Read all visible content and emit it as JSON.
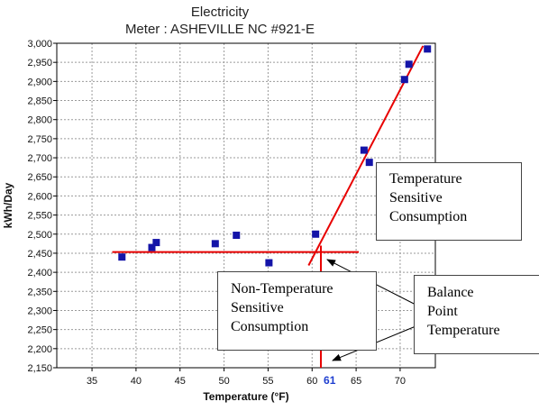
{
  "chart_data": {
    "type": "scatter",
    "title": "Electricity",
    "subtitle": "Meter : ASHEVILLE NC #921-E",
    "xlabel": "Temperature (°F)",
    "ylabel": "kWh/Day",
    "xlim": [
      31,
      74
    ],
    "ylim": [
      2150,
      3000
    ],
    "xticks": [
      35,
      40,
      45,
      50,
      55,
      60,
      65,
      70
    ],
    "xtick_labels": [
      "35",
      "40",
      "45",
      "50",
      "55",
      "60",
      "65",
      "70"
    ],
    "yticks": [
      2150,
      2200,
      2250,
      2300,
      2350,
      2400,
      2450,
      2500,
      2550,
      2600,
      2650,
      2700,
      2750,
      2800,
      2850,
      2900,
      2950,
      3000
    ],
    "ytick_labels": [
      "2,150",
      "2,200",
      "2,250",
      "2,300",
      "2,350",
      "2,400",
      "2,450",
      "2,500",
      "2,550",
      "2,600",
      "2,650",
      "2,700",
      "2,750",
      "2,800",
      "2,850",
      "2,900",
      "2,950",
      "3,000"
    ],
    "grid": true,
    "points": [
      {
        "x": 38.4,
        "y": 2440
      },
      {
        "x": 41.8,
        "y": 2465
      },
      {
        "x": 42.3,
        "y": 2478
      },
      {
        "x": 49.0,
        "y": 2475
      },
      {
        "x": 51.4,
        "y": 2497
      },
      {
        "x": 55.1,
        "y": 2425
      },
      {
        "x": 60.4,
        "y": 2500
      },
      {
        "x": 65.9,
        "y": 2720
      },
      {
        "x": 66.5,
        "y": 2688
      },
      {
        "x": 70.5,
        "y": 2905
      },
      {
        "x": 71.0,
        "y": 2945
      },
      {
        "x": 73.1,
        "y": 2985
      }
    ],
    "lines": [
      {
        "name": "baseload",
        "x": [
          37.3,
          65.3
        ],
        "y": [
          2453,
          2453
        ]
      },
      {
        "name": "temperature-sensitive",
        "x": [
          59.6,
          72.6
        ],
        "y": [
          2418,
          2993
        ]
      },
      {
        "name": "balance-point",
        "x": [
          61,
          61
        ],
        "y": [
          2470,
          2150
        ]
      }
    ],
    "highlight_tick": {
      "x": 61,
      "label": "61"
    },
    "annotations": [
      {
        "id": "temp-sensitive",
        "lines": [
          "Temperature",
          "Sensitive",
          "Consumption"
        ]
      },
      {
        "id": "non-temp",
        "lines": [
          "Non-Temperature",
          "Sensitive",
          "Consumption"
        ]
      },
      {
        "id": "balance",
        "lines": [
          "Balance",
          "Point",
          "Temperature"
        ]
      }
    ],
    "colors": {
      "points": "#1414a8",
      "lines": "#e80000",
      "grid": "#9a9a9a",
      "highlight": "#1f3fd0"
    }
  }
}
